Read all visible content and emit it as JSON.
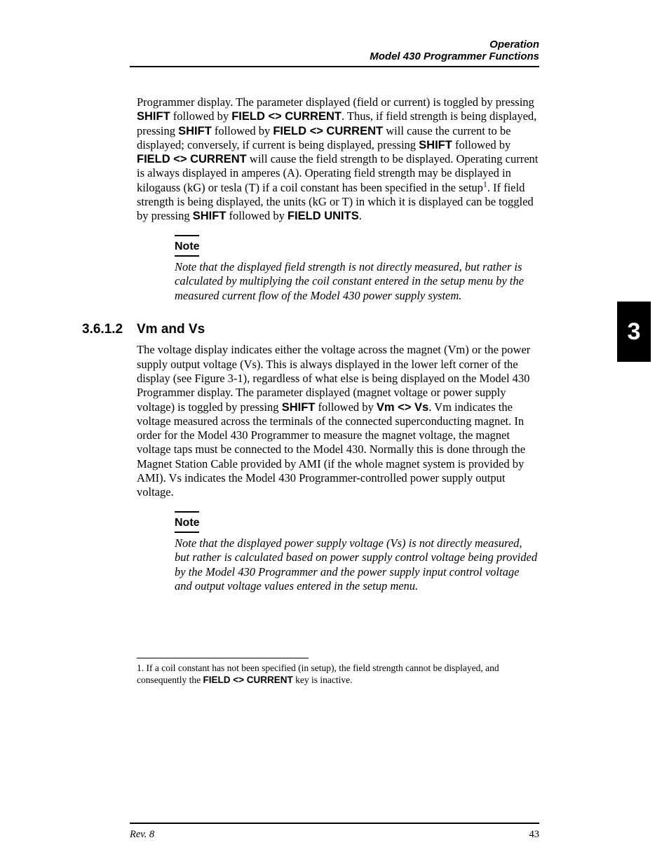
{
  "header": {
    "chapter": "Operation",
    "section": "Model 430 Programmer Functions"
  },
  "side_tab": "3",
  "body": {
    "p1a": "Programmer display. The parameter displayed (field or current) is toggled by pressing ",
    "k1": "SHIFT",
    "p1b": " followed by ",
    "k2": "FIELD <> CURRENT",
    "p1c": ". Thus, if field strength is being displayed, pressing ",
    "k3": "SHIFT",
    "p1d": " followed by ",
    "k4": "FIELD <> CURRENT",
    "p1e": " will cause the current to be displayed; conversely, if current is being displayed, pressing ",
    "k5": "SHIFT",
    "p1f": " followed by ",
    "k6": "FIELD <> CURRENT",
    "p1g": " will cause the field strength to be displayed. Operating current is always displayed in amperes (A). Operating field strength may be displayed in kilogauss (kG) or tesla (T) if a coil constant has been specified in the setup",
    "fnref": "1",
    "p1h": ". If field strength is being displayed, the units (kG or T) in which it is displayed can be toggled by pressing ",
    "k7": "SHIFT",
    "p1i": " followed by ",
    "k8": "FIELD UNITS",
    "p1j": "."
  },
  "note1_label": "Note",
  "note1_body": "Note that the displayed field strength is not directly measured, but rather is calculated by multiplying the coil constant entered in the setup menu by the measured current flow of the Model 430 power supply system.",
  "subsection": {
    "num": "3.6.1.2",
    "title": "Vm and Vs"
  },
  "body2": {
    "q1a": "The voltage display indicates either the voltage across the magnet (Vm) or the power supply output voltage (Vs). This is always displayed in the lower left corner of the display (see Figure 3-1), regardless of what else is being displayed on the Model 430 Programmer display. The parameter displayed (magnet voltage or power supply voltage) is toggled by pressing ",
    "k9": "SHIFT",
    "q1b": " followed by ",
    "k10": "Vm <> Vs",
    "q1c": ". Vm indicates the voltage measured across the terminals of the connected superconducting magnet. In order for the Model 430 Programmer to measure the magnet voltage, the magnet voltage taps must be connected to the Model 430. Normally this is done through the Magnet Station Cable provided by AMI (if the whole magnet system is provided by AMI). Vs indicates the Model 430 Programmer-controlled power supply output voltage."
  },
  "note2_label": "Note",
  "note2_body": "Note that the displayed power supply voltage (Vs) is not directly measured, but rather is calculated based on power supply control voltage being provided by the Model 430 Programmer and the power supply input control voltage and output voltage values entered in the setup menu.",
  "footnote": {
    "num": "1.",
    "text": "If a coil constant has not been specified (in setup), the field strength cannot be displayed, and consequently the ",
    "k11": "FIELD <> CURRENT",
    "text2": " key is inactive."
  },
  "footer": {
    "rev": "Rev. 8",
    "page": "43"
  }
}
